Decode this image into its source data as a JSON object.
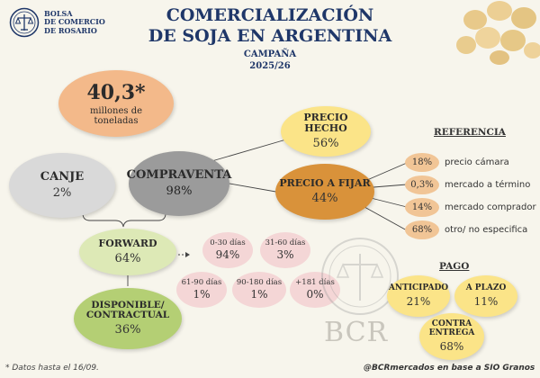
{
  "logo": {
    "line1": "BOLSA",
    "line2": "DE COMERCIO",
    "line3": "DE ROSARIO"
  },
  "title": {
    "line1": "COMERCIALIZACIÓN",
    "line2": "DE SOJA EN ARGENTINA",
    "campaign_label": "CAMPAÑA",
    "campaign_value": "2025/26"
  },
  "total": {
    "value": "40,3*",
    "unit": "millones de toneladas"
  },
  "canje": {
    "label": "CANJE",
    "value": "2%"
  },
  "compraventa": {
    "label": "COMPRAVENTA",
    "value": "98%"
  },
  "precio_hecho": {
    "label": "PRECIO HECHO",
    "value": "56%"
  },
  "precio_fijar": {
    "label": "PRECIO A FIJAR",
    "value": "44%"
  },
  "forward": {
    "label": "FORWARD",
    "value": "64%"
  },
  "disponible": {
    "label1": "DISPONIBLE/",
    "label2": "CONTRACTUAL",
    "value": "36%"
  },
  "forward_terms": [
    {
      "label": "0-30 días",
      "value": "94%"
    },
    {
      "label": "31-60 días",
      "value": "3%"
    },
    {
      "label": "61-90 días",
      "value": "1%"
    },
    {
      "label": "90-180 días",
      "value": "1%"
    },
    {
      "label": "+181 días",
      "value": "0%"
    }
  ],
  "referencia": {
    "heading": "REFERENCIA",
    "items": [
      {
        "value": "18%",
        "label": "precio cámara"
      },
      {
        "value": "0,3%",
        "label": "mercado a término"
      },
      {
        "value": "14%",
        "label": "mercado comprador"
      },
      {
        "value": "68%",
        "label": "otro/ no especifica"
      }
    ]
  },
  "pago": {
    "heading": "PAGO",
    "anticipado": {
      "label": "ANTICIPADO",
      "value": "21%"
    },
    "a_plazo": {
      "label": "A PLAZO",
      "value": "11%"
    },
    "contra_entrega": {
      "label1": "CONTRA",
      "label2": "ENTREGA",
      "value": "68%"
    }
  },
  "watermark": "BCR",
  "footer": {
    "note": "* Datos hasta el 16/09.",
    "credit": "@BCRmercados en base a SIO Granos"
  },
  "colors": {
    "navy": "#1f3769",
    "total": "#f3b98a",
    "canje": "#d9d9d9",
    "compraventa": "#9b9b9b",
    "precio_hecho": "#fbe488",
    "precio_fijar": "#d9923a",
    "forward": "#dde9b6",
    "disponible": "#b4cf74",
    "ref": "#f1c596",
    "pink": "#f4d6d6"
  }
}
